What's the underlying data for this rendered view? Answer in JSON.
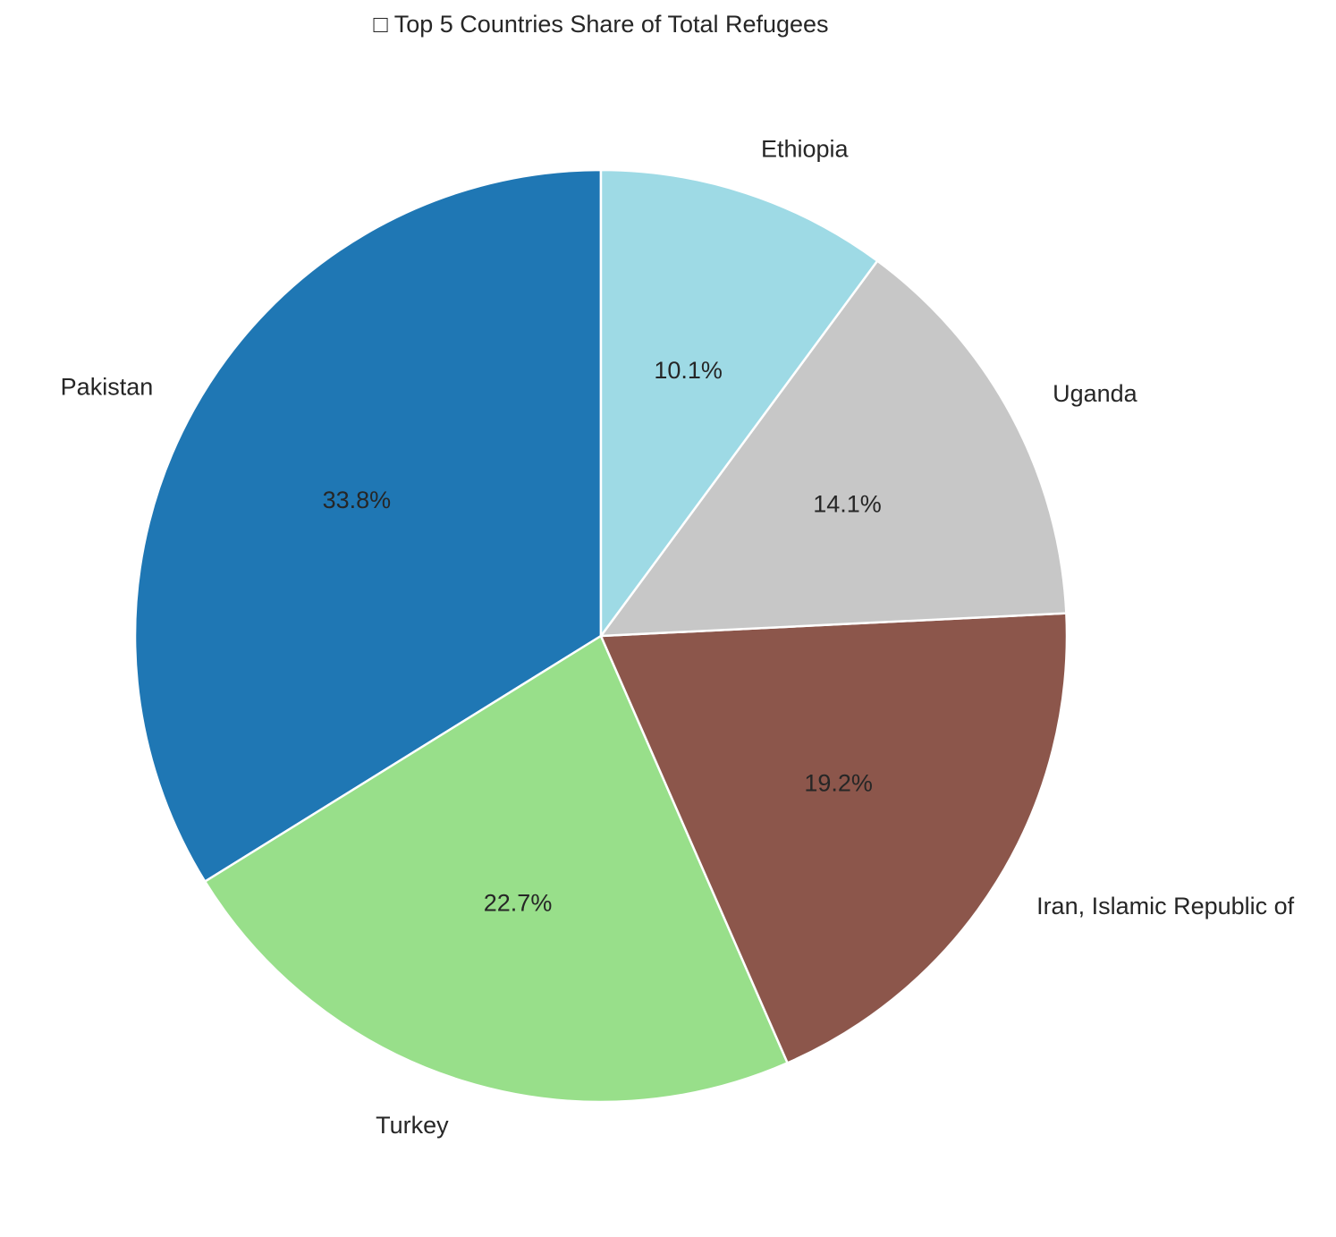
{
  "chart_data": {
    "type": "pie",
    "title": "□ Top 5 Countries Share of Total Refugees",
    "start_angle_deg": 90,
    "direction": "counterclockwise",
    "slices": [
      {
        "label": "Pakistan",
        "value": 33.8,
        "pct_label": "33.8%",
        "color": "#1f77b4"
      },
      {
        "label": "Turkey",
        "value": 22.7,
        "pct_label": "22.7%",
        "color": "#98df8a"
      },
      {
        "label": "Iran, Islamic Republic of",
        "value": 19.2,
        "pct_label": "19.2%",
        "color": "#8c564b"
      },
      {
        "label": "Uganda",
        "value": 14.1,
        "pct_label": "14.1%",
        "color": "#c7c7c7"
      },
      {
        "label": "Ethiopia",
        "value": 10.1,
        "pct_label": "10.1%",
        "color": "#9edae5"
      }
    ],
    "legend": "none"
  }
}
